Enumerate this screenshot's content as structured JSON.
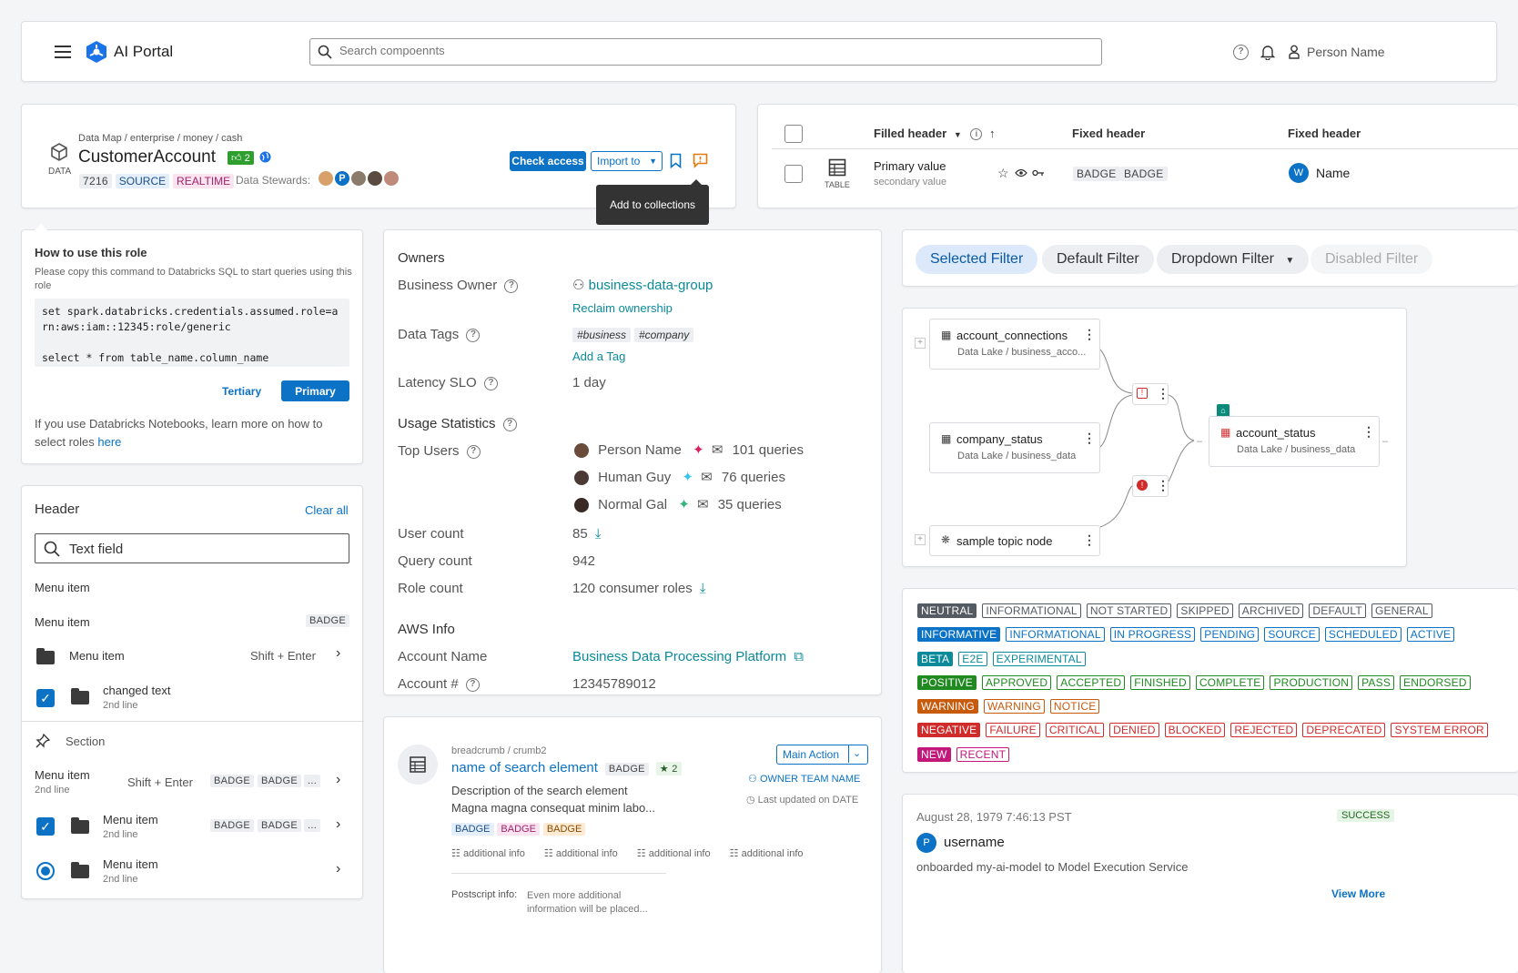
{
  "header": {
    "app_name": "AI Portal",
    "search_placeholder": "Search compoennts",
    "user_name": "Person Name"
  },
  "entity": {
    "breadcrumb": "Data Map / enterprise / money / cash",
    "type_label": "DATA",
    "title": "CustomerAccount",
    "vote_count": "2",
    "id": "7216",
    "badge1": "SOURCE",
    "badge2": "REALTIME",
    "stewards_label": "Data Stewards:",
    "steward_initial": "P",
    "check_access": "Check access",
    "import_to": "Import to",
    "tooltip": "Add to collections"
  },
  "table_card": {
    "col1": "Filled header",
    "col2": "Fixed header",
    "col3": "Fixed header",
    "primary": "Primary value",
    "secondary": "secondary value",
    "icon_label": "TABLE",
    "badge1": "BADGE",
    "badge2": "BADGE",
    "avatar_initial": "W",
    "name": "Name"
  },
  "role": {
    "title": "How to use this role",
    "desc": "Please copy this command to Databricks SQL to start queries using this role",
    "code_line1": "set spark.databricks.credentials.assumed.role=a",
    "code_line2": "rn:aws:iam::12345:role/generic",
    "code_line3": "select * from table_name.column_name",
    "tertiary": "Tertiary",
    "primary": "Primary",
    "footer": "If you use Databricks Notebooks, learn more on how to select roles",
    "footer_link": "here"
  },
  "menu": {
    "header": "Header",
    "clear_all": "Clear all",
    "text_field": "Text field",
    "item1": "Menu item",
    "item2": "Menu item",
    "item2_badge": "BADGE",
    "item3": "Menu item",
    "item3_shortcut": "Shift + Enter",
    "item4": "changed text",
    "item4_sub": "2nd line",
    "section": "Section",
    "item5": "Menu item",
    "item5_sub": "2nd line",
    "item5_shortcut": "Shift + Enter",
    "item5_badge1": "BADGE",
    "item5_badge2": "BADGE",
    "item5_more": "...",
    "item6": "Menu item",
    "item6_sub": "2nd line",
    "item6_badge1": "BADGE",
    "item6_badge2": "BADGE",
    "item6_more": "...",
    "item7": "Menu item",
    "item7_sub": "2nd line"
  },
  "owners": {
    "section": "Owners",
    "business_owner_label": "Business Owner",
    "business_owner": "business-data-group",
    "reclaim": "Reclaim ownership",
    "tags_label": "Data Tags",
    "tag1": "#business",
    "tag2": "#company",
    "add_tag": "Add a Tag",
    "latency_label": "Latency SLO",
    "latency": "1 day",
    "usage_section": "Usage Statistics",
    "top_users_label": "Top Users",
    "users": [
      {
        "name": "Person Name",
        "queries": "101 queries"
      },
      {
        "name": "Human Guy",
        "queries": "76 queries"
      },
      {
        "name": "Normal Gal",
        "queries": "35 queries"
      }
    ],
    "user_count_label": "User count",
    "user_count": "85",
    "query_count_label": "Query count",
    "query_count": "942",
    "role_count_label": "Role count",
    "role_count": "120 consumer roles",
    "aws_section": "AWS Info",
    "account_name_label": "Account Name",
    "account_name": "Business Data Processing Platform",
    "account_num_label": "Account #",
    "account_num": "12345789012"
  },
  "filters": {
    "selected": "Selected Filter",
    "default": "Default Filter",
    "dropdown": "Dropdown Filter",
    "disabled": "Disabled Filter"
  },
  "lineage": {
    "node1_title": "account_connections",
    "node1_sub": "Data Lake / business_acco...",
    "node2_title": "company_status",
    "node2_sub": "Data Lake / business_data",
    "node3_title": "sample topic node",
    "node4_title": "account_status",
    "node4_sub": "Data Lake / business_data"
  },
  "tags": {
    "rows": [
      {
        "color": "#555b63",
        "items": [
          "NEUTRAL",
          "INFORMATIONAL",
          "NOT STARTED",
          "SKIPPED",
          "ARCHIVED",
          "DEFAULT",
          "GENERAL"
        ]
      },
      {
        "color": "#0b72c5",
        "items": [
          "INFORMATIVE",
          "INFORMATIONAL",
          "IN PROGRESS",
          "PENDING",
          "SOURCE",
          "SCHEDULED",
          "ACTIVE"
        ]
      },
      {
        "color": "#0a8a9a",
        "items": [
          "BETA",
          "E2E",
          "EXPERIMENTAL"
        ]
      },
      {
        "color": "#1f8a1f",
        "items": [
          "POSITIVE",
          "APPROVED",
          "ACCEPTED",
          "FINISHED",
          "COMPLETE",
          "PRODUCTION",
          "PASS",
          "ENDORSED"
        ]
      },
      {
        "color": "#c85a0c",
        "items": [
          "WARNING",
          "WARNING",
          "NOTICE"
        ]
      },
      {
        "color": "#d02c2c",
        "items": [
          "NEGATIVE",
          "FAILURE",
          "CRITICAL",
          "DENIED",
          "BLOCKED",
          "REJECTED",
          "DEPRECATED",
          "SYSTEM ERROR"
        ]
      },
      {
        "color": "#c2187a",
        "items": [
          "NEW",
          "RECENT"
        ]
      }
    ]
  },
  "search_result": {
    "breadcrumb": "breadcrumb / crumb2",
    "title": "name of search element",
    "badge": "BADGE",
    "stars": "2",
    "desc1": "Description of the search element",
    "desc2": "Magna magna consequat minim labo...",
    "badge_blue": "BADGE",
    "badge_pink": "BADGE",
    "badge_orange": "BADGE",
    "info1": "additional info",
    "info2": "additional info",
    "info3": "additional info",
    "info4": "additional info",
    "postscript_label": "Postscript info:",
    "postscript": "Even more additional information will be placed...",
    "main_action": "Main Action",
    "owner_team": "OWNER TEAM NAME",
    "updated": "Last updated on DATE"
  },
  "activity": {
    "timestamp": "August 28, 1979 7:46:13 PST",
    "status": "SUCCESS",
    "avatar_initial": "P",
    "username": "username",
    "message": "onboarded my-ai-model to Model Execution Service",
    "view_more": "View More"
  }
}
